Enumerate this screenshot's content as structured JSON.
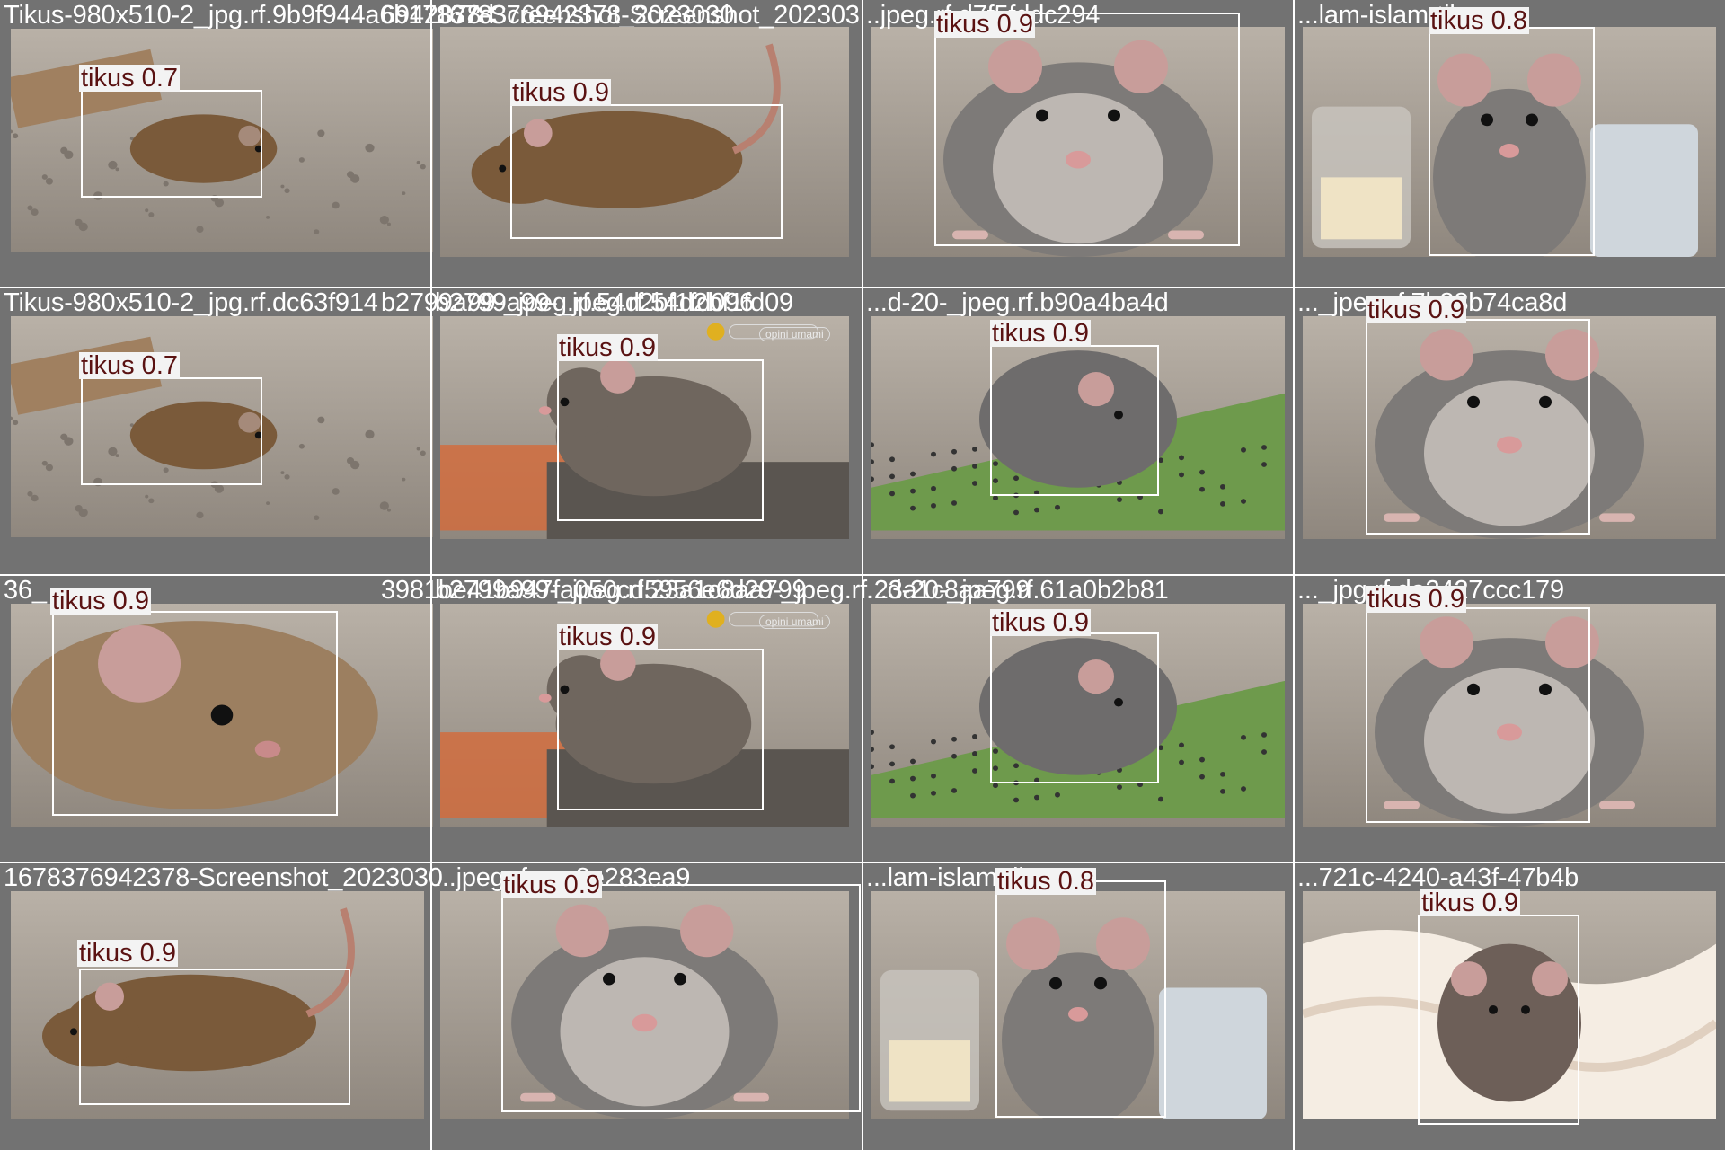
{
  "image": {
    "description_kind": "object-detection validation mosaic",
    "colors": {
      "grid_bg": "#727272",
      "box": "#ffffff",
      "label_text": "#5a1212",
      "label_bg": "#f3f3f3"
    }
  },
  "tiles": [
    {
      "filename": "Tikus-980x510-2_jpg.rf.9b9f944a6b17837d",
      "overlay_text": "6942378-Screenshot_2023030",
      "label": "tikus 0.7",
      "scene": "gravel",
      "icon": "rat-under-board"
    },
    {
      "filename": "1678376942378-Screenshot_202303",
      "label": "tikus 0.9",
      "scene": "white",
      "icon": "brown-rat-side"
    },
    {
      "filename": "..jpeg.rf.d7f5fddc294",
      "label": "tikus 0.9",
      "scene": "white",
      "icon": "grey-rat-front"
    },
    {
      "filename": "...lam-islam-tikus",
      "label": "tikus 0.8",
      "scene": "kitchen",
      "icon": "rat-with-jars"
    },
    {
      "filename": "Tikus-980x510-2_jpg.rf.dc63f914",
      "overlay_text": "b2799a99-_jpeg.rf.54d2bf1fd096",
      "label": "tikus 0.7",
      "scene": "gravel",
      "icon": "rat-under-board"
    },
    {
      "filename": "b2799a99-_jpeg.rf.54d2bf1fd09",
      "label": "tikus 0.9",
      "scene": "rooftop",
      "icon": "rat-on-roof",
      "watermark": "opini umami"
    },
    {
      "filename": "...d-20-_jpeg.rf.b90a4ba4d",
      "label": "tikus 0.9",
      "scene": "green",
      "icon": "grey-rat-seeds"
    },
    {
      "filename": "..._jpeg.rf.7b88b74ca8d",
      "label": "tikus 0.9",
      "scene": "white",
      "icon": "grey-rat-front"
    },
    {
      "filename": "36_",
      "overlay_text": "3981be41b947fa050cd5956e6d29-_jpeg.rf.23a1c8aa799",
      "label": "tikus 0.9",
      "scene": "blur",
      "icon": "rat-closeup"
    },
    {
      "filename": "b2799a99-_jpeg.rf.23a1c8aa799",
      "label": "tikus 0.9",
      "scene": "rooftop",
      "icon": "rat-on-roof",
      "watermark": "opini umami"
    },
    {
      "filename": "...d-20-_jpeg.rf.61a0b2b81",
      "label": "tikus 0.9",
      "scene": "green",
      "icon": "grey-rat-seeds"
    },
    {
      "filename": "..._jpg.rf.da3427ccc179",
      "label": "tikus 0.9",
      "scene": "white",
      "icon": "grey-rat-front"
    },
    {
      "filename": "1678376942378-Screenshot_2023030",
      "label": "tikus 0.9",
      "scene": "white",
      "icon": "brown-rat-side"
    },
    {
      "filename": "...jpeg.rf.cea8e283ea9",
      "label": "tikus 0.9",
      "scene": "white",
      "icon": "grey-rat-front"
    },
    {
      "filename": "...lam-islam-tikus",
      "label": "tikus 0.8",
      "scene": "kitchen",
      "icon": "rat-with-jars"
    },
    {
      "filename": "...721c-4240-a43f-47b4b",
      "label": "tikus 0.9",
      "scene": "blanket",
      "icon": "rat-in-blanket"
    }
  ]
}
